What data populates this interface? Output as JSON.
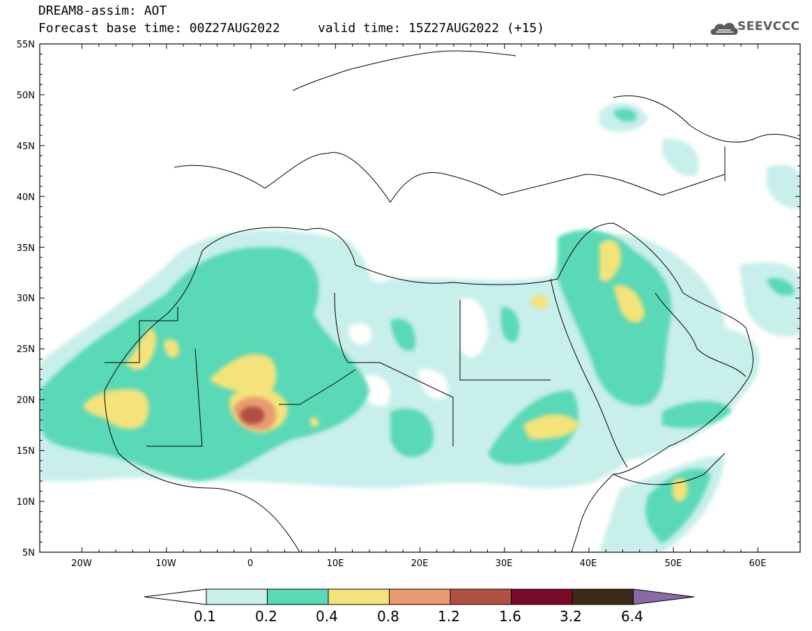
{
  "header": {
    "line1": "DREAM8-assim: AOT",
    "line2": "Forecast base time: 00Z27AUG2022     valid time: 15Z27AUG2022 (+15)"
  },
  "logo": {
    "text": "SEEVCCC",
    "icon": "cloud-icon"
  },
  "map": {
    "lat_labels": [
      "55N",
      "50N",
      "45N",
      "40N",
      "35N",
      "30N",
      "25N",
      "20N",
      "15N",
      "10N",
      "5N"
    ],
    "lon_labels": [
      "20W",
      "10W",
      "0",
      "10E",
      "20E",
      "30E",
      "40E",
      "50E",
      "60E"
    ],
    "lat_range": [
      5,
      55
    ],
    "lon_range": [
      -25,
      65
    ]
  },
  "colorbar": {
    "labels": [
      "0.1",
      "0.2",
      "0.4",
      "0.8",
      "1.2",
      "1.6",
      "3.2",
      "6.4"
    ],
    "colors": [
      "#ffffff",
      "#c8efea",
      "#5ad9b6",
      "#f4e27a",
      "#e89a70",
      "#b05040",
      "#7a0a28",
      "#3a2a18",
      "#8a6aa6"
    ]
  }
}
